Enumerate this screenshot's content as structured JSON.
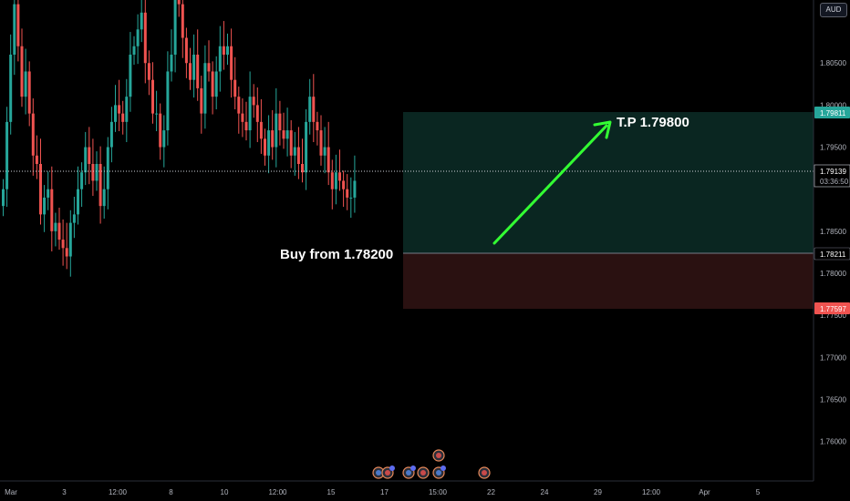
{
  "axis": {
    "currency": "AUD",
    "y_ticks": [
      "1.80500",
      "1.80000",
      "1.79500",
      "1.78500",
      "1.78000",
      "1.77500",
      "1.77000",
      "1.76500",
      "1.76000"
    ],
    "x_ticks": [
      "Mar",
      "3",
      "12:00",
      "8",
      "10",
      "12:00",
      "15",
      "17",
      "15:00",
      "22",
      "24",
      "29",
      "12:00",
      "Apr",
      "5"
    ]
  },
  "price_tags": {
    "take_profit": {
      "value": "1.79811",
      "color": "#26a69a"
    },
    "current": {
      "value": "1.79139",
      "countdown": "03:36:50"
    },
    "entry": {
      "value": "1.78211"
    },
    "stop": {
      "value": "1.77597",
      "color": "#ef5350"
    }
  },
  "annotations": {
    "take_profit_text": "T.P 1.79800",
    "buy_text": "Buy from 1.78200",
    "arrow_color": "#33ff33"
  },
  "colors": {
    "bull": "#26a69a",
    "bear": "#ef5350",
    "profit_zone": "#0a2621",
    "loss_zone": "#2a1111"
  },
  "chart_data": {
    "type": "candlestick",
    "title": "",
    "currency": "AUD",
    "y_range": [
      1.7553,
      1.8125
    ],
    "current_price": 1.79139,
    "position": {
      "side": "long",
      "entry": 1.78211,
      "take_profit": 1.79811,
      "stop_loss": 1.77597
    },
    "close_series": [
      1.79,
      1.798,
      1.806,
      1.812,
      1.807,
      1.801,
      1.804,
      1.799,
      1.794,
      1.793,
      1.787,
      1.789,
      1.79,
      1.785,
      1.786,
      1.784,
      1.783,
      1.782,
      1.786,
      1.787,
      1.79,
      1.792,
      1.795,
      1.793,
      1.791,
      1.793,
      1.788,
      1.79,
      1.795,
      1.798,
      1.8,
      1.799,
      1.798,
      1.801,
      1.806,
      1.807,
      1.809,
      1.811,
      1.805,
      1.803,
      1.799,
      1.799,
      1.795,
      1.797,
      1.804,
      1.806,
      1.813,
      1.812,
      1.808,
      1.805,
      1.803,
      1.806,
      1.802,
      1.799,
      1.805,
      1.804,
      1.801,
      1.804,
      1.807,
      1.806,
      1.807,
      1.803,
      1.801,
      1.799,
      1.798,
      1.797,
      1.801,
      1.8,
      1.798,
      1.796,
      1.794,
      1.797,
      1.795,
      1.799,
      1.797,
      1.796,
      1.797,
      1.794,
      1.795,
      1.793,
      1.792,
      1.798,
      1.801,
      1.798,
      1.797,
      1.794,
      1.795,
      1.792,
      1.79,
      1.792,
      1.791,
      1.79,
      1.789,
      1.789,
      1.791
    ]
  }
}
